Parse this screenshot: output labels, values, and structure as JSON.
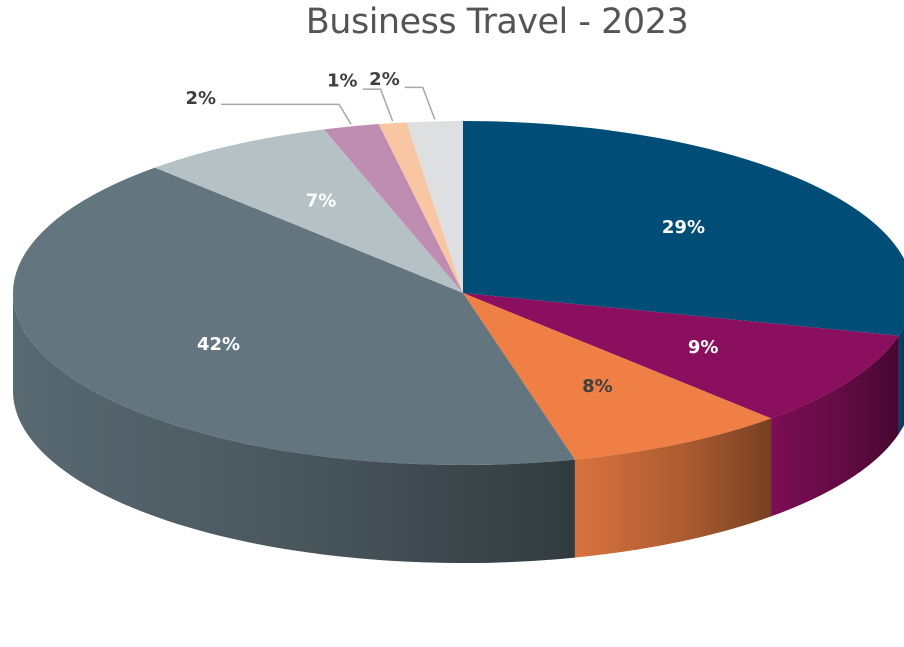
{
  "chart_data": {
    "type": "pie",
    "title": "Business Travel -  2023",
    "slices": [
      {
        "label": "29%",
        "value": 29,
        "color": "#004d78",
        "label_color": "#ffffff"
      },
      {
        "label": "9%",
        "value": 9,
        "color": "#8a0f5e",
        "label_color": "#ffffff"
      },
      {
        "label": "8%",
        "value": 8,
        "color": "#f07f45",
        "label_color": "#404040"
      },
      {
        "label": "42%",
        "value": 42,
        "color": "#63757e",
        "label_color": "#ffffff"
      },
      {
        "label": "7%",
        "value": 7,
        "color": "#b6c1c6",
        "label_color": "#ffffff"
      },
      {
        "label": "2%",
        "value": 2,
        "color": "#c08db2",
        "label_color": "#404040"
      },
      {
        "label": "1%",
        "value": 1,
        "color": "#f9c6a4",
        "label_color": "#404040"
      },
      {
        "label": "2%",
        "value": 2,
        "color": "#dedfe0",
        "label_color": "#404040"
      }
    ]
  }
}
